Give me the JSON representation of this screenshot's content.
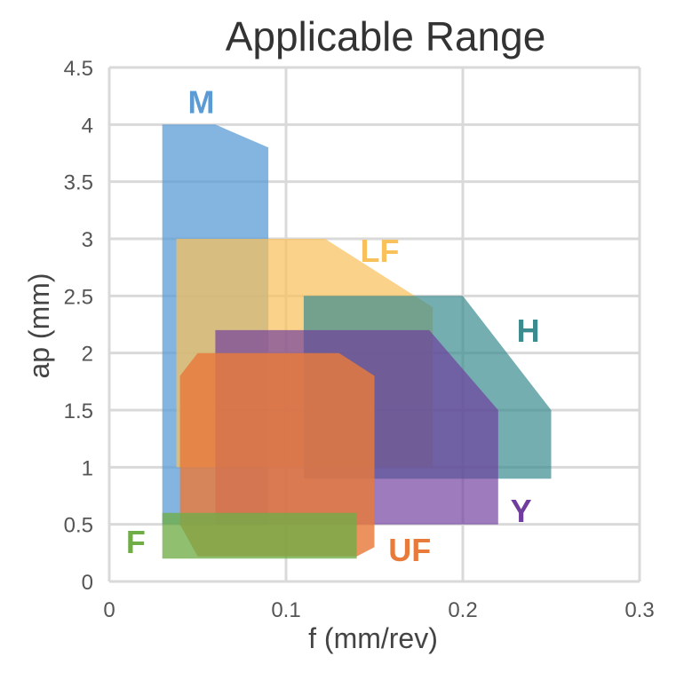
{
  "chart_data": {
    "type": "area",
    "title": "Applicable Range",
    "xlabel": "f (mm/rev)",
    "ylabel": "ap (mm)",
    "xlim": [
      0,
      0.3
    ],
    "ylim": [
      0,
      4.5
    ],
    "xticks": [
      0,
      0.1,
      0.2,
      0.3
    ],
    "xtick_labels": [
      "0",
      "0.1",
      "0.2",
      "0.3"
    ],
    "yticks": [
      0,
      0.5,
      1,
      1.5,
      2,
      2.5,
      3,
      3.5,
      4,
      4.5
    ],
    "ytick_labels": [
      "0",
      "0.5",
      "1",
      "1.5",
      "2",
      "2.5",
      "3",
      "3.5",
      "4",
      "4.5"
    ],
    "grid": true,
    "series": [
      {
        "name": "M",
        "color": "#5b9bd5",
        "opacity": 0.75,
        "x": [
          0.03,
          0.06,
          0.09,
          0.09,
          0.03
        ],
        "y": [
          4.0,
          4.0,
          3.8,
          0.5,
          0.5
        ],
        "label_at": [
          0.052,
          4.2
        ]
      },
      {
        "name": "LF",
        "color": "#f8c15c",
        "opacity": 0.72,
        "x": [
          0.038,
          0.122,
          0.183,
          0.183,
          0.038
        ],
        "y": [
          3.0,
          3.0,
          2.4,
          1.0,
          1.0
        ],
        "label_at": [
          0.153,
          2.9
        ]
      },
      {
        "name": "H",
        "color": "#3b8b8f",
        "opacity": 0.7,
        "x": [
          0.11,
          0.2,
          0.25,
          0.25,
          0.11
        ],
        "y": [
          2.5,
          2.5,
          1.5,
          0.9,
          0.9
        ],
        "label_at": [
          0.237,
          2.2
        ]
      },
      {
        "name": "Y",
        "color": "#6f3d9e",
        "opacity": 0.68,
        "x": [
          0.06,
          0.181,
          0.22,
          0.22,
          0.06
        ],
        "y": [
          2.2,
          2.2,
          1.5,
          0.5,
          0.5
        ],
        "label_at": [
          0.233,
          0.62
        ]
      },
      {
        "name": "UF",
        "color": "#e87a3c",
        "opacity": 0.82,
        "x": [
          0.05,
          0.13,
          0.15,
          0.15,
          0.14,
          0.05,
          0.04,
          0.04
        ],
        "y": [
          2.0,
          2.0,
          1.8,
          0.3,
          0.22,
          0.22,
          0.5,
          1.8
        ],
        "label_at": [
          0.17,
          0.28
        ]
      },
      {
        "name": "F",
        "color": "#70ad47",
        "opacity": 0.78,
        "x": [
          0.03,
          0.14,
          0.14,
          0.03
        ],
        "y": [
          0.6,
          0.6,
          0.2,
          0.2
        ],
        "label_at": [
          0.015,
          0.35
        ]
      }
    ]
  }
}
